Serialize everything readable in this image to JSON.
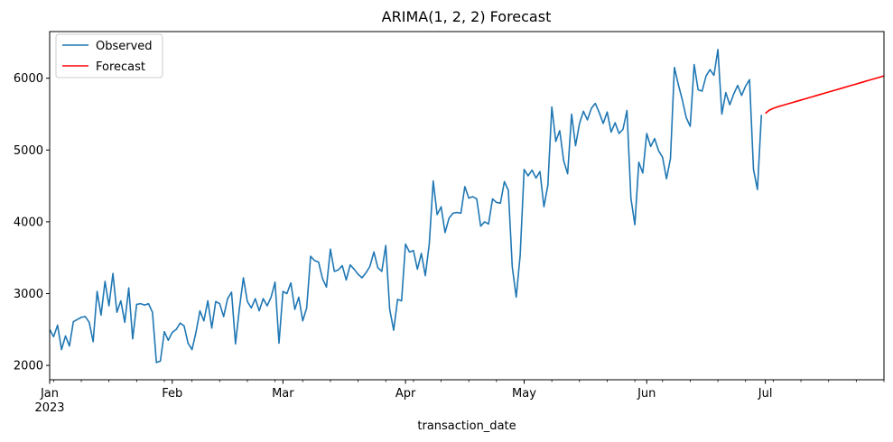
{
  "chart_data": {
    "type": "line",
    "title": "ARIMA(1, 2, 2) Forecast",
    "xlabel": "transaction_date",
    "ylabel": "",
    "x_range": [
      "2023-01-01",
      "2023-07-31"
    ],
    "ylim": [
      1800,
      6650
    ],
    "y_ticks": [
      2000,
      3000,
      4000,
      5000,
      6000
    ],
    "x_ticks": [
      {
        "date": "2023-01-01",
        "label": "Jan",
        "sublabel": "2023"
      },
      {
        "date": "2023-02-01",
        "label": "Feb",
        "sublabel": ""
      },
      {
        "date": "2023-03-01",
        "label": "Mar",
        "sublabel": ""
      },
      {
        "date": "2023-04-01",
        "label": "Apr",
        "sublabel": ""
      },
      {
        "date": "2023-05-01",
        "label": "May",
        "sublabel": ""
      },
      {
        "date": "2023-06-01",
        "label": "Jun",
        "sublabel": ""
      },
      {
        "date": "2023-07-01",
        "label": "Jul",
        "sublabel": ""
      }
    ],
    "grid": false,
    "legend_position": "top-left",
    "series": [
      {
        "name": "Observed",
        "color": "#1f77b4",
        "start_date": "2023-01-01",
        "values": [
          2500,
          2400,
          2560,
          2220,
          2410,
          2270,
          2610,
          2640,
          2670,
          2680,
          2600,
          2330,
          3030,
          2700,
          3170,
          2830,
          3280,
          2740,
          2900,
          2600,
          3080,
          2370,
          2850,
          2860,
          2840,
          2860,
          2740,
          2040,
          2060,
          2470,
          2350,
          2460,
          2500,
          2590,
          2550,
          2310,
          2220,
          2460,
          2760,
          2620,
          2900,
          2520,
          2890,
          2860,
          2680,
          2930,
          3020,
          2300,
          2800,
          3220,
          2890,
          2800,
          2930,
          2760,
          2930,
          2830,
          2950,
          3160,
          2310,
          3030,
          3000,
          3150,
          2780,
          2950,
          2620,
          2800,
          3520,
          3460,
          3440,
          3210,
          3090,
          3620,
          3310,
          3330,
          3390,
          3190,
          3400,
          3340,
          3270,
          3220,
          3290,
          3380,
          3580,
          3360,
          3310,
          3670,
          2780,
          2490,
          2920,
          2900,
          3690,
          3580,
          3600,
          3340,
          3560,
          3250,
          3690,
          4570,
          4100,
          4210,
          3850,
          4050,
          4120,
          4130,
          4120,
          4490,
          4330,
          4350,
          4320,
          3940,
          4000,
          3970,
          4320,
          4270,
          4260,
          4560,
          4440,
          3370,
          2950,
          3540,
          4730,
          4640,
          4720,
          4610,
          4700,
          4210,
          4510,
          5600,
          5120,
          5270,
          4850,
          4670,
          5500,
          5060,
          5370,
          5540,
          5420,
          5580,
          5650,
          5520,
          5370,
          5530,
          5250,
          5380,
          5230,
          5290,
          5550,
          4330,
          3960,
          4830,
          4680,
          5230,
          5050,
          5160,
          4990,
          4900,
          4600,
          4880,
          6150,
          5910,
          5700,
          5450,
          5330,
          6190,
          5840,
          5820,
          6030,
          6120,
          6040,
          6400,
          5500,
          5800,
          5630,
          5780,
          5900,
          5760,
          5890,
          5980,
          4730,
          4450,
          5490
        ]
      },
      {
        "name": "Forecast",
        "color": "#ff0000",
        "start_date": "2023-07-01",
        "values": [
          5510,
          5555,
          5580,
          5600,
          5616,
          5632,
          5648,
          5664,
          5680,
          5696,
          5712,
          5728,
          5744,
          5760,
          5776,
          5792,
          5808,
          5824,
          5840,
          5856,
          5872,
          5888,
          5904,
          5920,
          5936,
          5952,
          5968,
          5984,
          6000,
          6016,
          6032
        ]
      }
    ]
  }
}
